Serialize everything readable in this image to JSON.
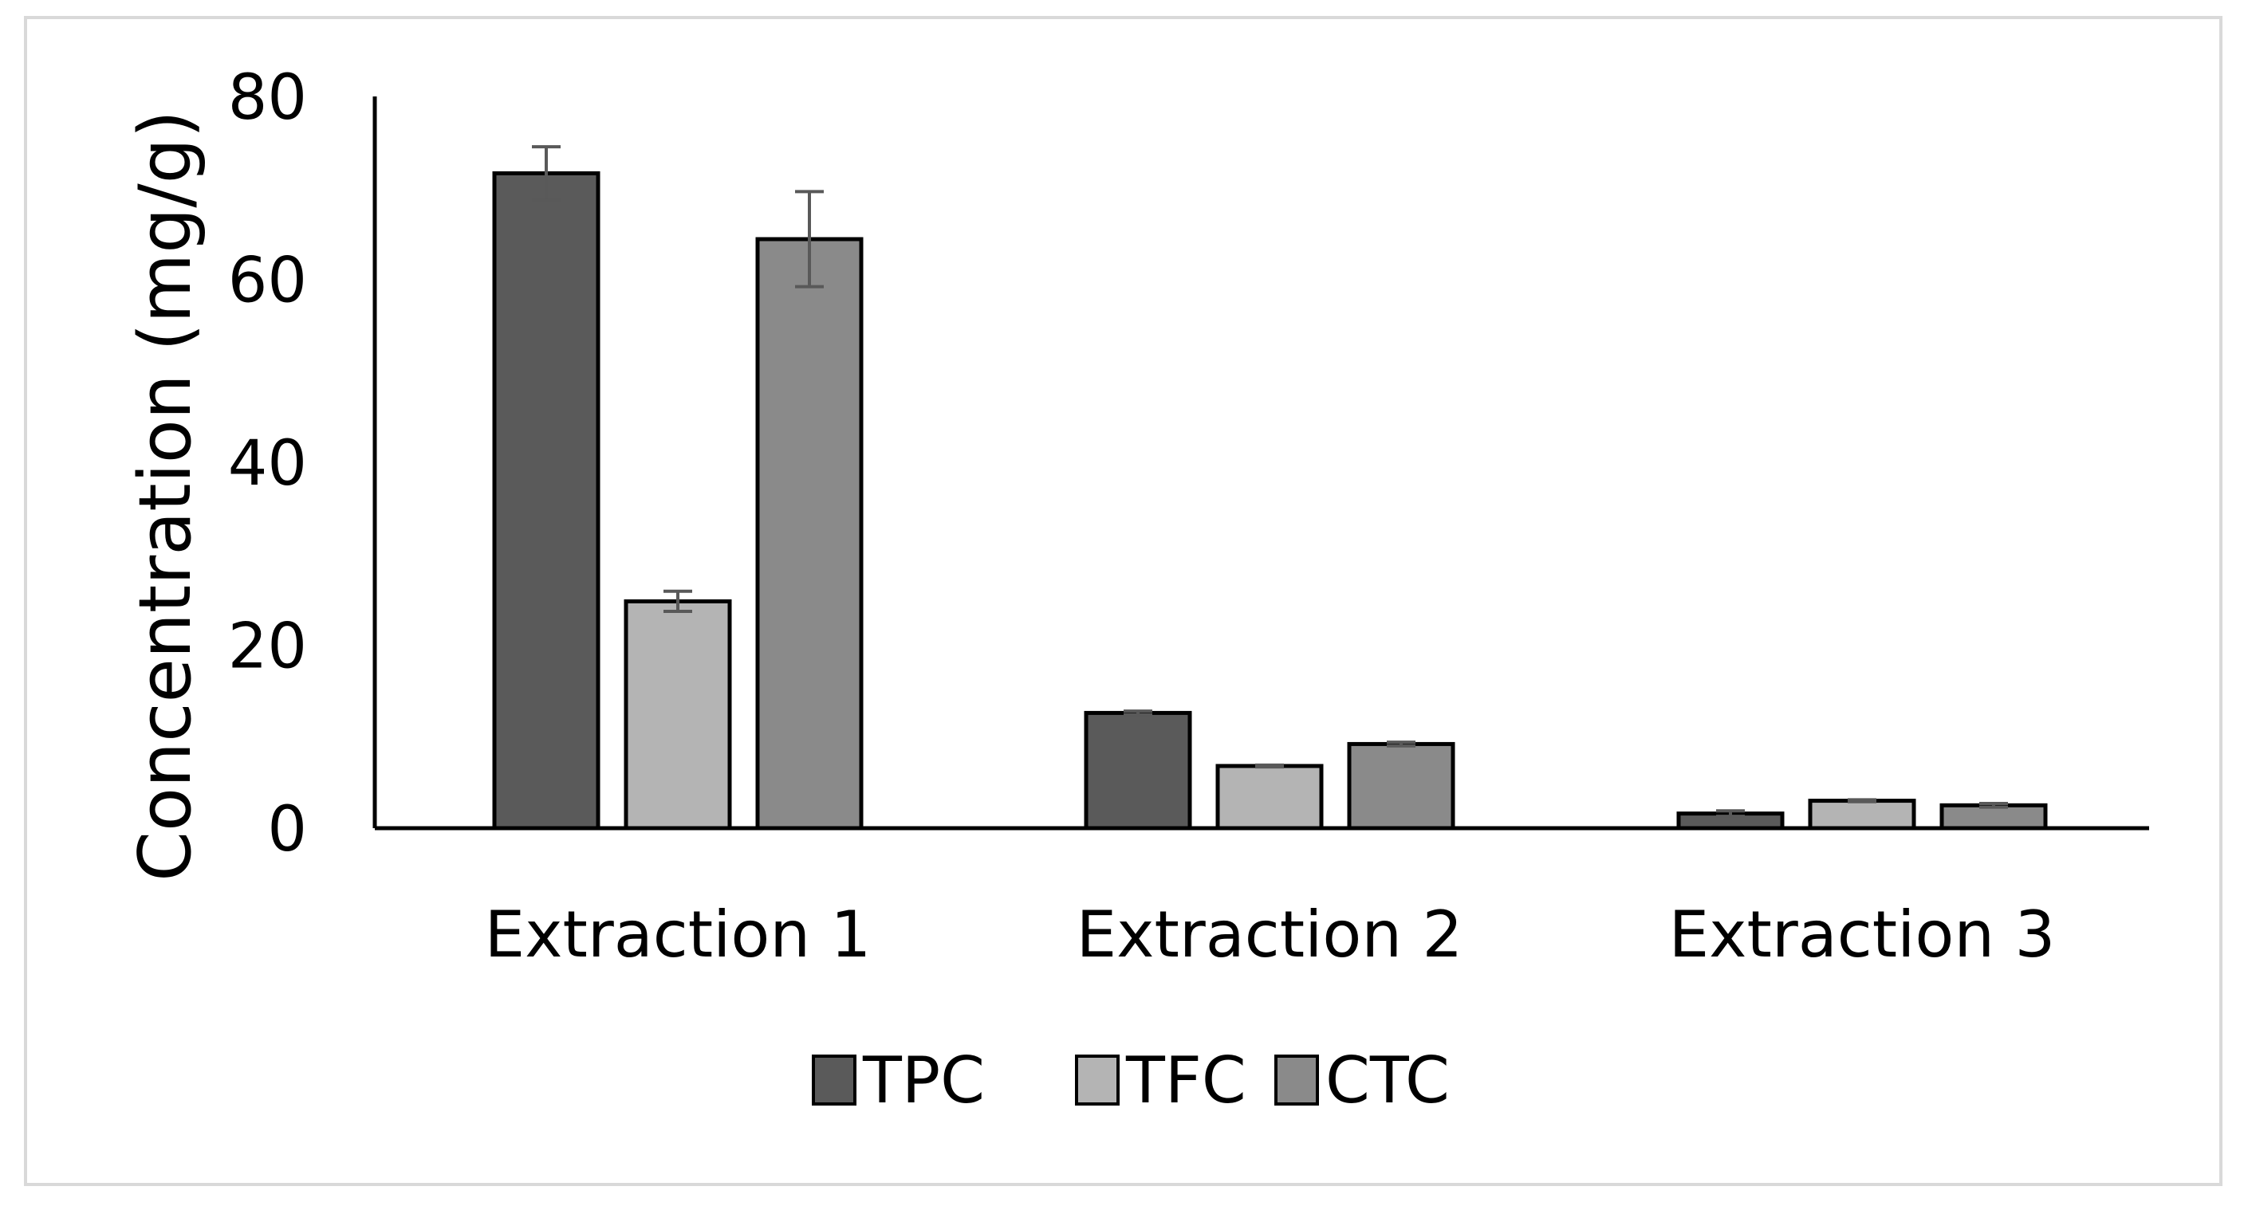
{
  "chart_data": {
    "type": "bar",
    "title": "",
    "xlabel": "",
    "ylabel": "Concentration (mg/g)",
    "ylim": [
      0,
      80
    ],
    "yticks": [
      0,
      20,
      40,
      60,
      80
    ],
    "grid": false,
    "legend_position": "bottom-center",
    "categories": [
      "Extraction 1",
      "Extraction 2",
      "Extraction 3"
    ],
    "series": [
      {
        "name": "TPC",
        "color": "#5a5a5a",
        "values": [
          71.6,
          12.6,
          1.6
        ],
        "errors": [
          2.9,
          0.2,
          0.3
        ]
      },
      {
        "name": "TFC",
        "color": "#b4b4b4",
        "values": [
          24.8,
          6.8,
          3.0
        ],
        "errors": [
          1.1,
          0.1,
          0.1
        ]
      },
      {
        "name": "CTC",
        "color": "#8a8a8a",
        "values": [
          64.4,
          9.2,
          2.5
        ],
        "errors": [
          5.2,
          0.2,
          0.2
        ]
      }
    ]
  }
}
